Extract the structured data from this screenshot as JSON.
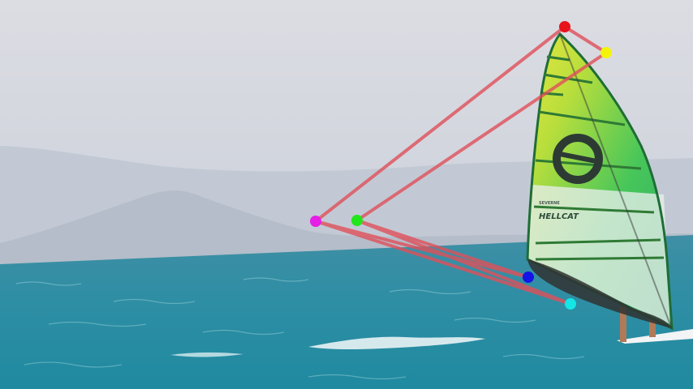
{
  "sail": {
    "brand_text": "HELLCAT",
    "mark_text": "SEVERNE"
  },
  "keypoints": [
    {
      "name": "keypoint-red",
      "color": "#e8141c"
    },
    {
      "name": "keypoint-yellow",
      "color": "#f4f40a"
    },
    {
      "name": "keypoint-magenta",
      "color": "#e61ee6"
    },
    {
      "name": "keypoint-green",
      "color": "#22e61c"
    },
    {
      "name": "keypoint-blue",
      "color": "#1414e6"
    },
    {
      "name": "keypoint-cyan",
      "color": "#14e6e6"
    }
  ],
  "skeleton_color": "#e0505a"
}
